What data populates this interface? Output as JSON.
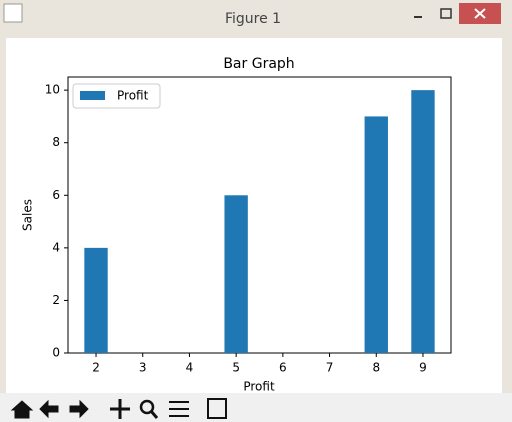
{
  "window": {
    "title": "Figure 1"
  },
  "chart_data": {
    "type": "bar",
    "title": "Bar Graph",
    "xlabel": "Profit",
    "ylabel": "Sales",
    "x": [
      2,
      5,
      8,
      9
    ],
    "series": [
      {
        "name": "Profit",
        "color": "#1f77b4",
        "values": [
          4,
          6,
          9,
          10
        ]
      }
    ],
    "bar_width": 0.5,
    "xlim": [
      1.4,
      9.6
    ],
    "xticks": [
      2,
      3,
      4,
      5,
      6,
      7,
      8,
      9
    ],
    "ylim": [
      0,
      10.5
    ],
    "yticks": [
      0,
      2,
      4,
      6,
      8,
      10
    ],
    "legend": "upper left"
  }
}
